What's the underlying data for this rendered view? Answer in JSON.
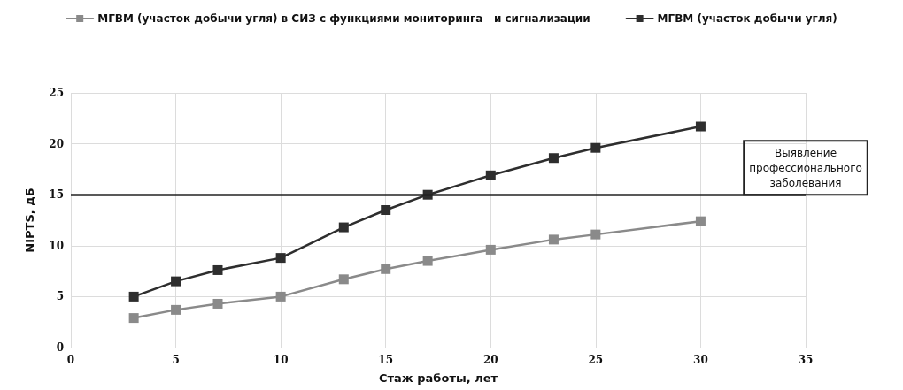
{
  "chart_data": {
    "type": "line",
    "xlabel": "Стаж работы, лет",
    "ylabel": "NIPTS, дБ",
    "x": [
      3,
      5,
      7,
      10,
      13,
      15,
      17,
      20,
      23,
      25,
      30
    ],
    "series": [
      {
        "name": "МГВМ (участок добычи угля) в СИЗ с функциями мониторинга   и сигнализации",
        "color": "#8a8a8a",
        "values": [
          2.9,
          3.7,
          4.3,
          5.0,
          6.7,
          7.7,
          8.5,
          9.6,
          10.6,
          11.1,
          12.4
        ]
      },
      {
        "name": "МГВМ (участок добычи угля)",
        "color": "#2e2e2e",
        "values": [
          5.0,
          6.5,
          7.6,
          8.8,
          11.8,
          13.5,
          15.0,
          16.9,
          18.6,
          19.6,
          21.7
        ]
      }
    ],
    "xlim": [
      0,
      35
    ],
    "xticks": [
      0,
      5,
      10,
      15,
      20,
      25,
      30,
      35
    ],
    "ylim": [
      0,
      25
    ],
    "yticks": [
      0,
      5,
      10,
      15,
      20,
      25
    ],
    "ref_lines": [
      {
        "axis": "y",
        "value": 15,
        "label": "Выявление профессионального заболевания",
        "color": "#222222"
      }
    ],
    "grid": true,
    "legend": "top",
    "marker": "square",
    "line_style": "solid"
  }
}
